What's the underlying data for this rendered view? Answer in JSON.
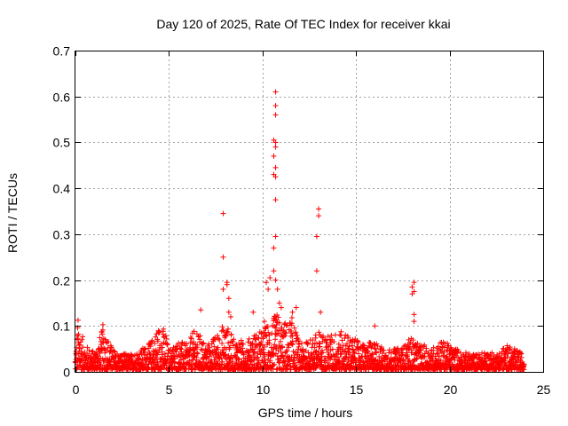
{
  "chart_data": {
    "type": "scatter",
    "title": "Day 120 of 2025, Rate Of TEC Index for receiver kkai",
    "xlabel": "GPS time / hours",
    "ylabel": "ROTI / TECUs",
    "xlim": [
      0,
      25
    ],
    "ylim": [
      0,
      0.7
    ],
    "xticks": [
      0,
      5,
      10,
      15,
      20,
      25
    ],
    "yticks": [
      0,
      0.1,
      0.2,
      0.3,
      0.4,
      0.5,
      0.6,
      0.7
    ],
    "xtick_labels": [
      "0",
      "5",
      "10",
      "15",
      "20",
      "25"
    ],
    "ytick_labels": [
      "0",
      "0.1",
      "0.2",
      "0.3",
      "0.4",
      "0.5",
      "0.6",
      "0.7"
    ],
    "grid": true,
    "marker": "plus",
    "marker_color": "#ff0000",
    "series": [
      {
        "name": "ROTI",
        "notable_points": [
          {
            "x": 10.7,
            "y": 0.61
          },
          {
            "x": 10.7,
            "y": 0.58
          },
          {
            "x": 10.7,
            "y": 0.56
          },
          {
            "x": 10.6,
            "y": 0.505
          },
          {
            "x": 10.7,
            "y": 0.5
          },
          {
            "x": 10.7,
            "y": 0.49
          },
          {
            "x": 10.6,
            "y": 0.47
          },
          {
            "x": 10.7,
            "y": 0.445
          },
          {
            "x": 10.6,
            "y": 0.43
          },
          {
            "x": 10.7,
            "y": 0.425
          },
          {
            "x": 10.7,
            "y": 0.375
          },
          {
            "x": 10.7,
            "y": 0.295
          },
          {
            "x": 10.6,
            "y": 0.27
          },
          {
            "x": 10.6,
            "y": 0.22
          },
          {
            "x": 10.7,
            "y": 0.2
          },
          {
            "x": 10.2,
            "y": 0.195
          },
          {
            "x": 10.4,
            "y": 0.205
          },
          {
            "x": 10.3,
            "y": 0.18
          },
          {
            "x": 10.8,
            "y": 0.18
          },
          {
            "x": 10.9,
            "y": 0.15
          },
          {
            "x": 11.0,
            "y": 0.14
          },
          {
            "x": 7.9,
            "y": 0.345
          },
          {
            "x": 7.9,
            "y": 0.25
          },
          {
            "x": 7.9,
            "y": 0.18
          },
          {
            "x": 8.1,
            "y": 0.195
          },
          {
            "x": 8.1,
            "y": 0.19
          },
          {
            "x": 8.2,
            "y": 0.16
          },
          {
            "x": 8.2,
            "y": 0.13
          },
          {
            "x": 8.3,
            "y": 0.12
          },
          {
            "x": 13.0,
            "y": 0.355
          },
          {
            "x": 13.0,
            "y": 0.34
          },
          {
            "x": 12.9,
            "y": 0.295
          },
          {
            "x": 12.9,
            "y": 0.22
          },
          {
            "x": 13.1,
            "y": 0.13
          },
          {
            "x": 11.8,
            "y": 0.14
          },
          {
            "x": 18.1,
            "y": 0.195
          },
          {
            "x": 18.0,
            "y": 0.185
          },
          {
            "x": 18.1,
            "y": 0.175
          },
          {
            "x": 18.0,
            "y": 0.17
          },
          {
            "x": 18.1,
            "y": 0.125
          },
          {
            "x": 18.1,
            "y": 0.11
          },
          {
            "x": 6.7,
            "y": 0.135
          },
          {
            "x": 9.5,
            "y": 0.13
          },
          {
            "x": 10.1,
            "y": 0.11
          },
          {
            "x": 16.0,
            "y": 0.1
          },
          {
            "x": 11.6,
            "y": 0.13
          }
        ],
        "envelope": {
          "x": [
            0,
            0.1,
            0.15,
            0.3,
            0.5,
            1.0,
            1.4,
            1.5,
            1.7,
            2.0,
            2.5,
            3.0,
            3.5,
            4.0,
            4.4,
            4.6,
            4.8,
            5.0,
            5.5,
            6.0,
            6.3,
            6.7,
            7.0,
            7.5,
            7.8,
            8.0,
            8.5,
            8.8,
            9.0,
            9.5,
            10.0,
            10.3,
            10.6,
            10.8,
            11.0,
            11.3,
            11.6,
            12.0,
            12.5,
            13.0,
            13.5,
            14.0,
            14.5,
            15.0,
            15.5,
            16.0,
            16.5,
            17.0,
            17.5,
            18.0,
            18.3,
            18.6,
            19.0,
            19.5,
            20.0,
            20.5,
            21.0,
            21.5,
            22.0,
            22.5,
            23.0,
            23.5,
            24.0
          ],
          "y": [
            0.04,
            0.11,
            0.12,
            0.09,
            0.06,
            0.045,
            0.09,
            0.11,
            0.08,
            0.05,
            0.04,
            0.04,
            0.05,
            0.065,
            0.1,
            0.105,
            0.09,
            0.05,
            0.07,
            0.06,
            0.09,
            0.08,
            0.06,
            0.08,
            0.1,
            0.11,
            0.07,
            0.075,
            0.06,
            0.085,
            0.09,
            0.11,
            0.12,
            0.13,
            0.11,
            0.11,
            0.12,
            0.06,
            0.07,
            0.09,
            0.08,
            0.09,
            0.085,
            0.07,
            0.06,
            0.07,
            0.05,
            0.05,
            0.055,
            0.08,
            0.06,
            0.06,
            0.05,
            0.07,
            0.06,
            0.05,
            0.04,
            0.04,
            0.045,
            0.04,
            0.06,
            0.05,
            0.04
          ]
        }
      }
    ]
  }
}
